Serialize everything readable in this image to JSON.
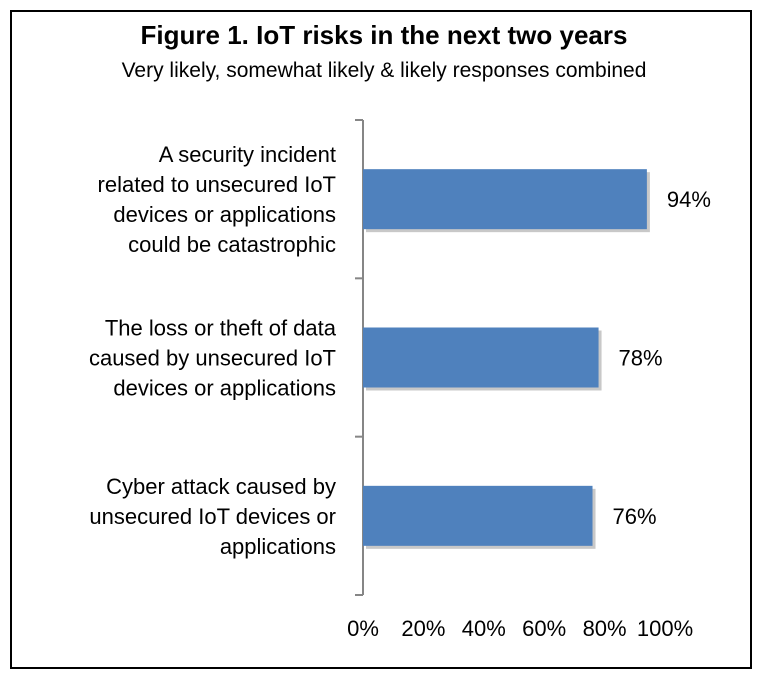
{
  "chart_data": {
    "type": "bar",
    "orientation": "horizontal",
    "title": "Figure 1. IoT risks in the next two years",
    "subtitle": "Very likely, somewhat likely & likely responses combined",
    "categories": [
      [
        "A security incident",
        "related to unsecured IoT",
        "devices or applications",
        "could be catastrophic"
      ],
      [
        "The loss or theft of data",
        "caused by unsecured IoT",
        "devices or applications"
      ],
      [
        "Cyber attack caused by",
        "unsecured IoT devices or",
        "applications"
      ]
    ],
    "values": [
      94,
      78,
      76
    ],
    "value_labels": [
      "94%",
      "78%",
      "76%"
    ],
    "xlim": [
      0,
      100
    ],
    "xticks": [
      "0%",
      "20%",
      "40%",
      "60%",
      "80%",
      "100%"
    ],
    "xlabel": "",
    "ylabel": "",
    "grid": false,
    "legend": "none",
    "bar_color": "#4f81bd",
    "axis_color": "#868686"
  }
}
